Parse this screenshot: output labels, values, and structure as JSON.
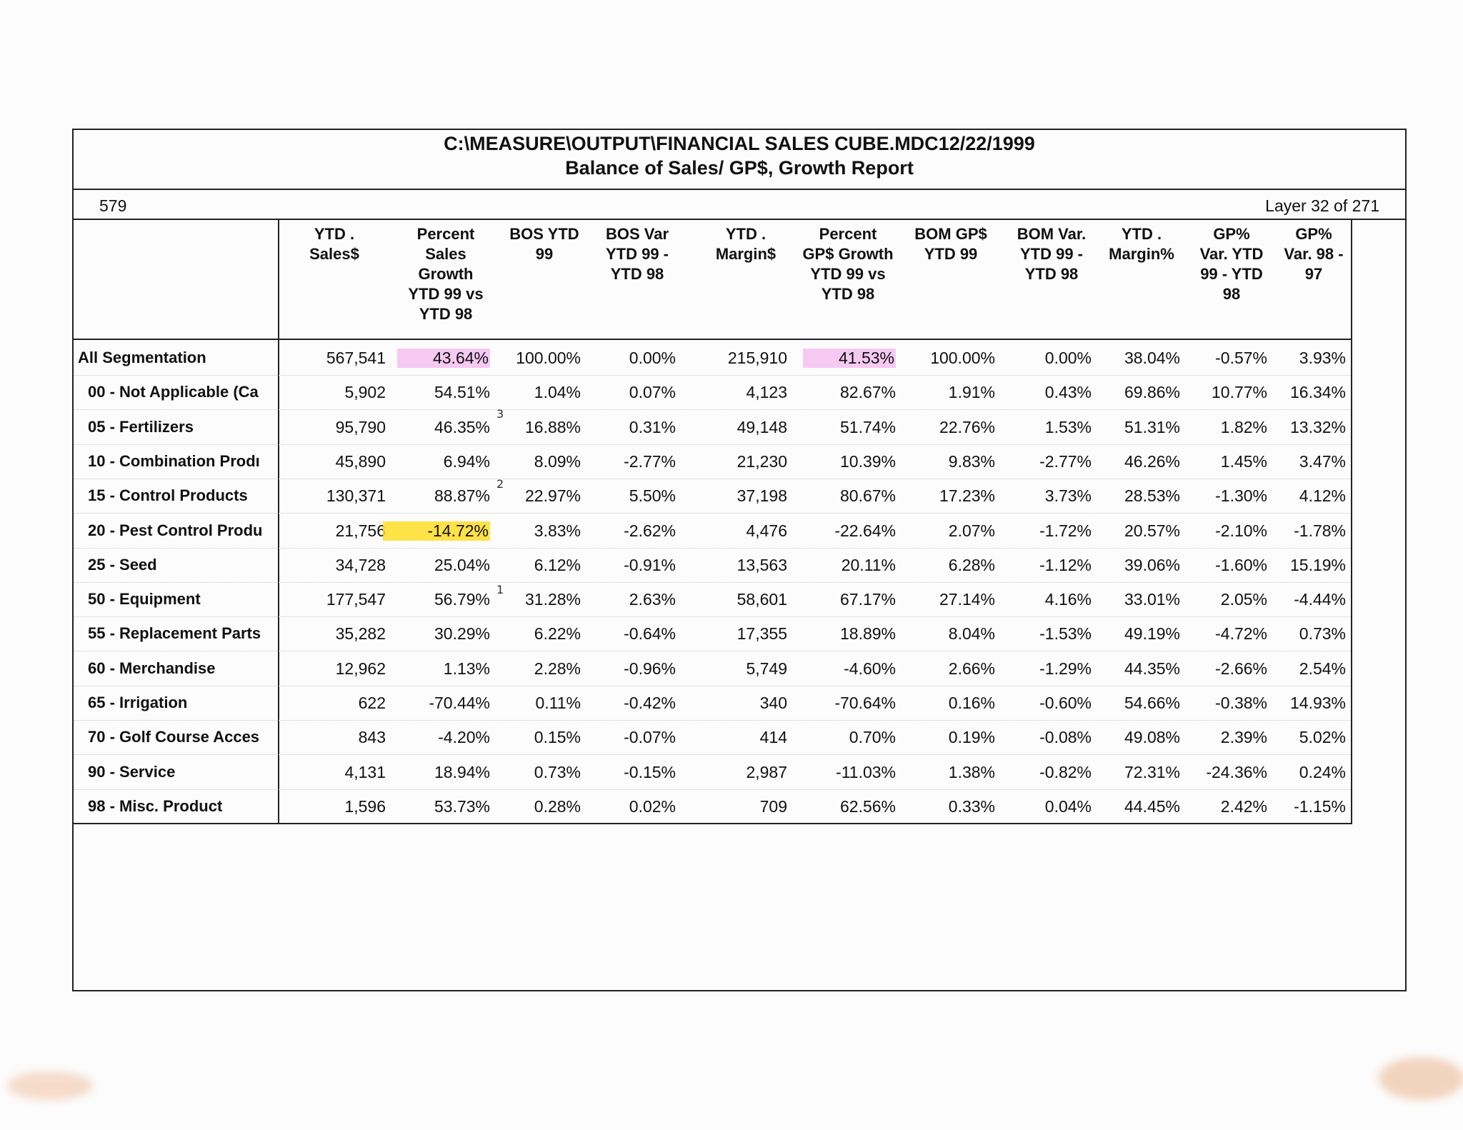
{
  "title": {
    "line1": "C:\\MEASURE\\OUTPUT\\FINANCIAL SALES CUBE.MDC12/22/1999",
    "line2": "Balance of Sales/ GP$, Growth Report"
  },
  "page_number": "579",
  "layer_text": "Layer 32 of 271",
  "columns": [
    "YTD . Sales$",
    "Percent\nSales\nGrowth\nYTD 99 vs\nYTD 98",
    "BOS YTD\n99",
    "BOS Var\nYTD 99 -\nYTD 98",
    "YTD .\nMargin$",
    "Percent\nGP$ Growth\nYTD 99 vs\nYTD 98",
    "BOM GP$\nYTD 99",
    "BOM Var.\nYTD 99 -\nYTD 98",
    "YTD .\nMargin%",
    "GP%\nVar. YTD\n99 - YTD\n98",
    "GP%\nVar. 98 -\n97"
  ],
  "rows": [
    {
      "label": "All Segmentation",
      "values": [
        "567,541",
        "43.64%",
        "100.00%",
        "0.00%",
        "215,910",
        "41.53%",
        "100.00%",
        "0.00%",
        "38.04%",
        "-0.57%",
        "3.93%"
      ]
    },
    {
      "label": "00 - Not Applicable (Ca",
      "values": [
        "5,902",
        "54.51%",
        "1.04%",
        "0.07%",
        "4,123",
        "82.67%",
        "1.91%",
        "0.43%",
        "69.86%",
        "10.77%",
        "16.34%"
      ]
    },
    {
      "label": "05 - Fertilizers",
      "values": [
        "95,790",
        "46.35%",
        "16.88%",
        "0.31%",
        "49,148",
        "51.74%",
        "22.76%",
        "1.53%",
        "51.31%",
        "1.82%",
        "13.32%"
      ]
    },
    {
      "label": "10 - Combination Prodı",
      "values": [
        "45,890",
        "6.94%",
        "8.09%",
        "-2.77%",
        "21,230",
        "10.39%",
        "9.83%",
        "-2.77%",
        "46.26%",
        "1.45%",
        "3.47%"
      ]
    },
    {
      "label": "15 - Control Products",
      "values": [
        "130,371",
        "88.87%",
        "22.97%",
        "5.50%",
        "37,198",
        "80.67%",
        "17.23%",
        "3.73%",
        "28.53%",
        "-1.30%",
        "4.12%"
      ]
    },
    {
      "label": "20 - Pest Control Produ",
      "values": [
        "21,756",
        "-14.72%",
        "3.83%",
        "-2.62%",
        "4,476",
        "-22.64%",
        "2.07%",
        "-1.72%",
        "20.57%",
        "-2.10%",
        "-1.78%"
      ]
    },
    {
      "label": "25 - Seed",
      "values": [
        "34,728",
        "25.04%",
        "6.12%",
        "-0.91%",
        "13,563",
        "20.11%",
        "6.28%",
        "-1.12%",
        "39.06%",
        "-1.60%",
        "15.19%"
      ]
    },
    {
      "label": "50 - Equipment",
      "values": [
        "177,547",
        "56.79%",
        "31.28%",
        "2.63%",
        "58,601",
        "67.17%",
        "27.14%",
        "4.16%",
        "33.01%",
        "2.05%",
        "-4.44%"
      ]
    },
    {
      "label": "55 - Replacement Parts",
      "values": [
        "35,282",
        "30.29%",
        "6.22%",
        "-0.64%",
        "17,355",
        "18.89%",
        "8.04%",
        "-1.53%",
        "49.19%",
        "-4.72%",
        "0.73%"
      ]
    },
    {
      "label": "60 - Merchandise",
      "values": [
        "12,962",
        "1.13%",
        "2.28%",
        "-0.96%",
        "5,749",
        "-4.60%",
        "2.66%",
        "-1.29%",
        "44.35%",
        "-2.66%",
        "2.54%"
      ]
    },
    {
      "label": "65 - Irrigation",
      "values": [
        "622",
        "-70.44%",
        "0.11%",
        "-0.42%",
        "340",
        "-70.64%",
        "0.16%",
        "-0.60%",
        "54.66%",
        "-0.38%",
        "14.93%"
      ]
    },
    {
      "label": "70 - Golf Course Acces",
      "values": [
        "843",
        "-4.20%",
        "0.15%",
        "-0.07%",
        "414",
        "0.70%",
        "0.19%",
        "-0.08%",
        "49.08%",
        "2.39%",
        "5.02%"
      ]
    },
    {
      "label": "90 - Service",
      "values": [
        "4,131",
        "18.94%",
        "0.73%",
        "-0.15%",
        "2,987",
        "-11.03%",
        "1.38%",
        "-0.82%",
        "72.31%",
        "-24.36%",
        "0.24%"
      ]
    },
    {
      "label": "98 - Misc. Product",
      "values": [
        "1,596",
        "53.73%",
        "0.28%",
        "0.02%",
        "709",
        "62.56%",
        "0.33%",
        "0.04%",
        "44.45%",
        "2.42%",
        "-1.15%"
      ]
    }
  ],
  "highlights": [
    {
      "row": 0,
      "col": 1,
      "color": "pink"
    },
    {
      "row": 0,
      "col": 5,
      "color": "pink"
    },
    {
      "row": 5,
      "col": 1,
      "color": "yellow"
    }
  ],
  "handwritten_marks": [
    "3",
    "2",
    "1"
  ]
}
